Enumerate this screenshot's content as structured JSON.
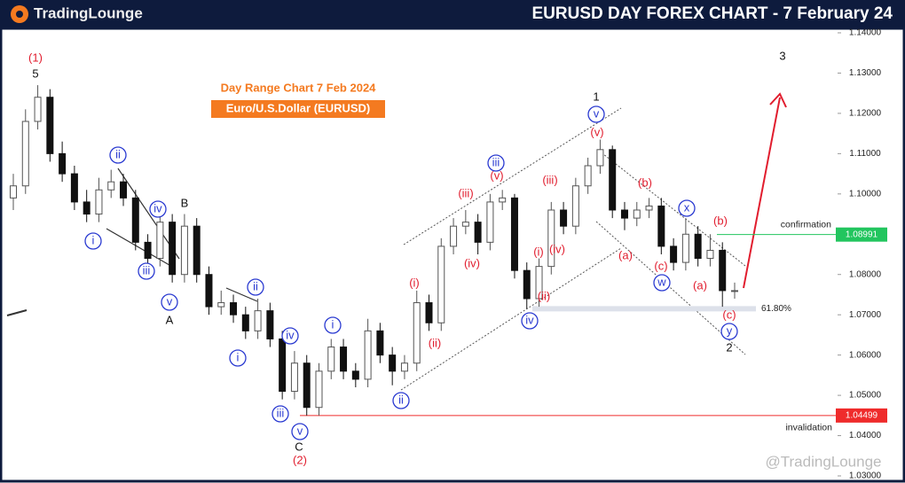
{
  "header": {
    "brand": "TradingLounge",
    "title": "EURUSD DAY FOREX CHART - 7 February 24"
  },
  "chart_data": {
    "type": "candlestick",
    "title": "Day Range Chart 7 Feb 2024",
    "subtitle": "Euro/U.S.Dollar (EURUSD)",
    "watermark": "@TradingLounge",
    "categories": [
      null,
      null,
      null,
      null,
      null,
      null,
      null,
      null,
      null,
      null,
      null,
      null,
      null,
      null,
      null,
      null,
      null,
      null,
      null,
      null,
      null,
      null,
      null,
      null,
      null,
      null,
      null,
      null,
      null,
      null,
      null,
      null,
      null,
      null,
      null,
      null,
      null,
      null,
      null,
      null,
      null,
      null,
      null,
      null,
      null,
      null,
      null,
      null,
      null,
      null,
      null,
      null,
      null,
      null,
      null,
      null,
      null,
      null,
      null,
      null
    ],
    "open": [
      1.099,
      1.102,
      1.118,
      1.124,
      1.11,
      1.105,
      1.098,
      1.095,
      1.101,
      1.103,
      1.099,
      1.088,
      1.084,
      1.093,
      1.08,
      1.092,
      1.08,
      1.072,
      1.073,
      1.07,
      1.066,
      1.071,
      1.064,
      1.051,
      1.058,
      1.047,
      1.056,
      1.062,
      1.056,
      1.054,
      1.066,
      1.06,
      1.056,
      1.058,
      1.073,
      1.068,
      1.087,
      1.092,
      1.093,
      1.088,
      1.098,
      1.099,
      1.081,
      1.074,
      1.082,
      1.096,
      1.092,
      1.102,
      1.107,
      1.111,
      1.096,
      1.094,
      1.096,
      1.097,
      1.087,
      1.083,
      1.09,
      1.084,
      1.086,
      1.076
    ],
    "high": [
      1.105,
      1.121,
      1.127,
      1.126,
      1.113,
      1.107,
      1.101,
      1.104,
      1.106,
      1.105,
      1.101,
      1.09,
      1.096,
      1.095,
      1.095,
      1.094,
      1.082,
      1.076,
      1.075,
      1.072,
      1.074,
      1.073,
      1.066,
      1.061,
      1.06,
      1.058,
      1.064,
      1.064,
      1.058,
      1.069,
      1.068,
      1.062,
      1.06,
      1.076,
      1.075,
      1.089,
      1.094,
      1.096,
      1.095,
      1.1,
      1.101,
      1.1,
      1.083,
      1.084,
      1.098,
      1.098,
      1.104,
      1.109,
      1.1135,
      1.112,
      1.098,
      1.098,
      1.099,
      1.099,
      1.089,
      1.094,
      1.092,
      1.09,
      1.088,
      1.078
    ],
    "low": [
      1.096,
      1.1,
      1.116,
      1.108,
      1.103,
      1.096,
      1.093,
      1.093,
      1.099,
      1.097,
      1.086,
      1.082,
      1.082,
      1.078,
      1.078,
      1.078,
      1.07,
      1.07,
      1.068,
      1.064,
      1.064,
      1.062,
      1.049,
      1.049,
      1.045,
      1.045,
      1.054,
      1.054,
      1.052,
      1.052,
      1.058,
      1.0525,
      1.054,
      1.056,
      1.066,
      1.066,
      1.085,
      1.09,
      1.085,
      1.086,
      1.096,
      1.079,
      1.0715,
      1.072,
      1.08,
      1.09,
      1.09,
      1.1,
      1.105,
      1.094,
      1.091,
      1.092,
      1.094,
      1.085,
      1.081,
      1.081,
      1.082,
      1.082,
      1.072,
      1.074
    ],
    "close": [
      1.102,
      1.118,
      1.124,
      1.11,
      1.105,
      1.098,
      1.095,
      1.101,
      1.103,
      1.099,
      1.088,
      1.084,
      1.093,
      1.08,
      1.092,
      1.08,
      1.072,
      1.073,
      1.07,
      1.066,
      1.071,
      1.064,
      1.051,
      1.058,
      1.047,
      1.056,
      1.062,
      1.056,
      1.054,
      1.066,
      1.06,
      1.056,
      1.058,
      1.073,
      1.068,
      1.087,
      1.092,
      1.093,
      1.088,
      1.098,
      1.099,
      1.081,
      1.074,
      1.082,
      1.096,
      1.092,
      1.102,
      1.107,
      1.111,
      1.096,
      1.094,
      1.096,
      1.097,
      1.087,
      1.083,
      1.09,
      1.084,
      1.086,
      1.076,
      1.076
    ],
    "up_color": "#555555",
    "down_color": "#111111",
    "ylim": [
      1.03,
      1.14
    ],
    "yticks": [
      {
        "value": 1.14,
        "label": "1.14000"
      },
      {
        "value": 1.13,
        "label": "1.13000"
      },
      {
        "value": 1.12,
        "label": "1.12000"
      },
      {
        "value": 1.11,
        "label": "1.11000"
      },
      {
        "value": 1.1,
        "label": "1.10000"
      },
      {
        "value": 1.09,
        "label": "1.09000"
      },
      {
        "value": 1.08,
        "label": "1.08000"
      },
      {
        "value": 1.07,
        "label": "1.07000"
      },
      {
        "value": 1.06,
        "label": "1.06000"
      },
      {
        "value": 1.05,
        "label": "1.05000"
      },
      {
        "value": 1.04,
        "label": "1.04000"
      },
      {
        "value": 1.03,
        "label": "1.03000"
      }
    ],
    "levels": [
      {
        "name": "confirmation",
        "value": 1.08991,
        "color": "#22c55e"
      },
      {
        "name": "invalidation",
        "value": 1.04499,
        "color": "#ef2b2b"
      }
    ],
    "fib": {
      "ratio": 61.8,
      "ratio_label": "61.80%",
      "price": 1.0715
    },
    "wave_labels": [
      {
        "text": "(1)",
        "style": "red"
      },
      {
        "text": "5",
        "style": "black"
      },
      {
        "text": "i",
        "style": "circle"
      },
      {
        "text": "ii",
        "style": "circle"
      },
      {
        "text": "iii",
        "style": "circle"
      },
      {
        "text": "iv",
        "style": "circle"
      },
      {
        "text": "v",
        "style": "circle"
      },
      {
        "text": "A",
        "style": "black"
      },
      {
        "text": "B",
        "style": "black"
      },
      {
        "text": "ii",
        "style": "circle"
      },
      {
        "text": "i",
        "style": "circle"
      },
      {
        "text": "iii",
        "style": "circle"
      },
      {
        "text": "iv",
        "style": "circle"
      },
      {
        "text": "v",
        "style": "circle"
      },
      {
        "text": "C",
        "style": "black"
      },
      {
        "text": "(2)",
        "style": "red"
      },
      {
        "text": "i",
        "style": "circle"
      },
      {
        "text": "ii",
        "style": "circle"
      },
      {
        "text": "(i)",
        "style": "red"
      },
      {
        "text": "(ii)",
        "style": "red"
      },
      {
        "text": "(iii)",
        "style": "red"
      },
      {
        "text": "(iv)",
        "style": "red"
      },
      {
        "text": "(v)",
        "style": "red"
      },
      {
        "text": "iii",
        "style": "circle"
      },
      {
        "text": "iv",
        "style": "circle"
      },
      {
        "text": "(i)",
        "style": "red"
      },
      {
        "text": "(ii)",
        "style": "red"
      },
      {
        "text": "(iii)",
        "style": "red"
      },
      {
        "text": "(iv)",
        "style": "red"
      },
      {
        "text": "v",
        "style": "circle"
      },
      {
        "text": "1",
        "style": "black"
      },
      {
        "text": "(v)",
        "style": "red"
      },
      {
        "text": "(a)",
        "style": "red"
      },
      {
        "text": "(b)",
        "style": "red"
      },
      {
        "text": "(c)",
        "style": "red"
      },
      {
        "text": "w",
        "style": "circle"
      },
      {
        "text": "x",
        "style": "circle"
      },
      {
        "text": "(b)",
        "style": "red"
      },
      {
        "text": "(a)",
        "style": "red"
      },
      {
        "text": "(c)",
        "style": "red"
      },
      {
        "text": "y",
        "style": "circle"
      },
      {
        "text": "2",
        "style": "black"
      },
      {
        "text": "3",
        "style": "black"
      }
    ]
  }
}
